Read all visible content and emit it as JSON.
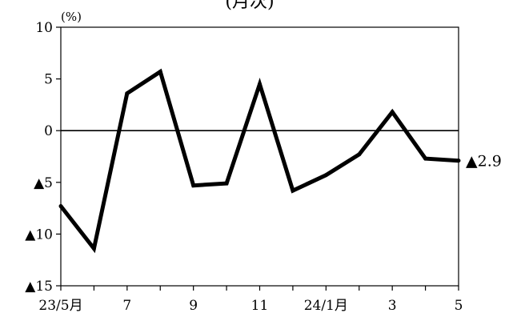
{
  "chart_data": {
    "type": "line",
    "title": "(月次)",
    "unit": "(%)",
    "ylim": [
      -15,
      10
    ],
    "y_ticks": [
      10,
      5,
      0,
      -5,
      -10,
      -15
    ],
    "y_tick_labels": [
      "10",
      "5",
      "0",
      "▲5",
      "▲10",
      "▲15"
    ],
    "x": [
      "23/5",
      "23/6",
      "23/7",
      "23/8",
      "23/9",
      "23/10",
      "23/11",
      "23/12",
      "24/1",
      "24/2",
      "24/3",
      "24/4",
      "24/5"
    ],
    "x_tick_labels": [
      "23/5月",
      "",
      "7",
      "",
      "9",
      "",
      "11",
      "",
      "24/1月",
      "",
      "3",
      "",
      "5"
    ],
    "series": [
      {
        "values": [
          -7.3,
          -11.4,
          3.6,
          5.7,
          -5.3,
          -5.1,
          4.5,
          -5.8,
          -4.3,
          -2.3,
          1.8,
          -2.7,
          -2.9
        ],
        "color": "#000000"
      }
    ],
    "zero_line": true,
    "grid": false,
    "end_label": "▲2.9"
  }
}
